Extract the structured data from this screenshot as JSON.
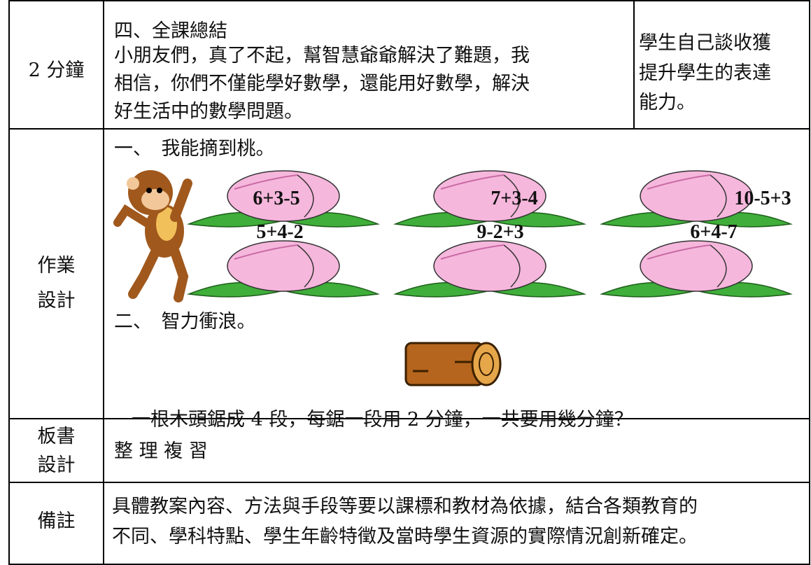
{
  "rows": [
    {
      "label": "2 分鐘",
      "content": [
        "四、全課總結",
        "小朋友們，真了不起，幫智慧爺爺解決了難題，我",
        "相信，你們不僅能學好數學，還能用好數學，解決",
        "好生活中的數學問題。"
      ],
      "note": [
        "學生自己談收獲",
        "提升學生的表達",
        "能力。"
      ]
    },
    {
      "label": [
        "作業",
        "設計"
      ],
      "tasks": [
        {
          "heading": "一、　我能摘到桃。",
          "peaches": [
            "6+3-5",
            "7+3-4",
            "10-5+3",
            "5+4-2",
            "9-2+3",
            "6+4-7"
          ]
        },
        {
          "heading": "二、　智力衝浪。",
          "question": "一根木頭鋸成 4 段，每鋸一段用 2 分鐘，一共要用幾分鐘？"
        }
      ]
    },
    {
      "label": [
        "板書",
        "設計"
      ],
      "content": "整 理 複 習"
    },
    {
      "label": "備註",
      "content": [
        "具體教案內容、方法與手段等要以課標和教材為依據，結合各類教育的",
        "不同、學科特點、學生年齡特徵及當時學生資源的實際情況創新確定。"
      ]
    }
  ]
}
